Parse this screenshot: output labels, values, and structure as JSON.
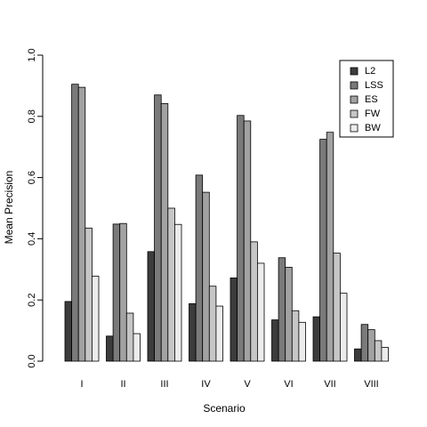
{
  "chart_data": {
    "type": "bar",
    "title": "",
    "xlabel": "Scenario",
    "ylabel": "Mean Precision",
    "ylim": [
      0,
      1
    ],
    "yticks": [
      "0.0",
      "0.2",
      "0.4",
      "0.6",
      "0.8",
      "1.0"
    ],
    "categories": [
      "I",
      "II",
      "III",
      "IV",
      "V",
      "VI",
      "VII",
      "VIII"
    ],
    "series": [
      {
        "name": "L2",
        "color": "#3c3c3c",
        "values": [
          0.195,
          0.082,
          0.358,
          0.188,
          0.272,
          0.135,
          0.145,
          0.04
        ]
      },
      {
        "name": "LSS",
        "color": "#7a7a7a",
        "values": [
          0.905,
          0.448,
          0.87,
          0.608,
          0.803,
          0.338,
          0.725,
          0.12
        ]
      },
      {
        "name": "ES",
        "color": "#a2a2a2",
        "values": [
          0.895,
          0.45,
          0.842,
          0.552,
          0.785,
          0.307,
          0.748,
          0.103
        ]
      },
      {
        "name": "FW",
        "color": "#c6c6c6",
        "values": [
          0.435,
          0.157,
          0.5,
          0.245,
          0.39,
          0.165,
          0.353,
          0.067
        ]
      },
      {
        "name": "BW",
        "color": "#ececec",
        "values": [
          0.278,
          0.09,
          0.447,
          0.18,
          0.32,
          0.127,
          0.222,
          0.045
        ]
      }
    ],
    "grid": false,
    "legend_position": "top-right"
  }
}
